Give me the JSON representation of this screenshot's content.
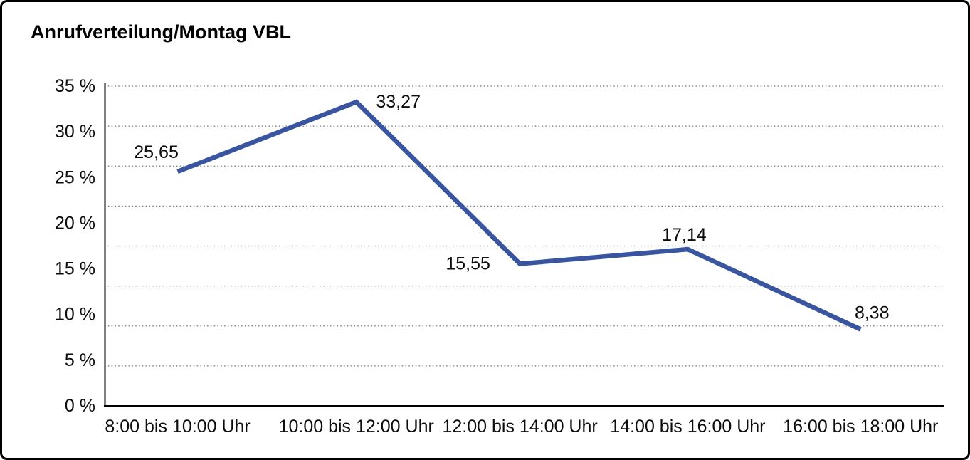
{
  "title": "Anrufverteilung/Montag VBL",
  "chart_data": {
    "type": "line",
    "title": "Anrufverteilung/Montag VBL",
    "categories": [
      "8:00 bis 10:00 Uhr",
      "10:00 bis 12:00 Uhr",
      "12:00 bis 14:00 Uhr",
      "14:00 bis 16:00 Uhr",
      "16:00 bis 18:00 Uhr"
    ],
    "values": [
      25.65,
      33.27,
      15.55,
      17.14,
      8.38
    ],
    "data_labels": [
      "25,65",
      "33,27",
      "15,55",
      "17,14",
      "8,38"
    ],
    "y_tick_labels": [
      "35 %",
      "30 %",
      "25 %",
      "20 %",
      "15 %",
      "10 %",
      "5 %",
      "0 %"
    ],
    "ylim": [
      0,
      35
    ],
    "xlabel": "",
    "ylabel": "",
    "legend": "none",
    "grid": "horizontal-dotted",
    "line_color": "#3A55A0"
  }
}
